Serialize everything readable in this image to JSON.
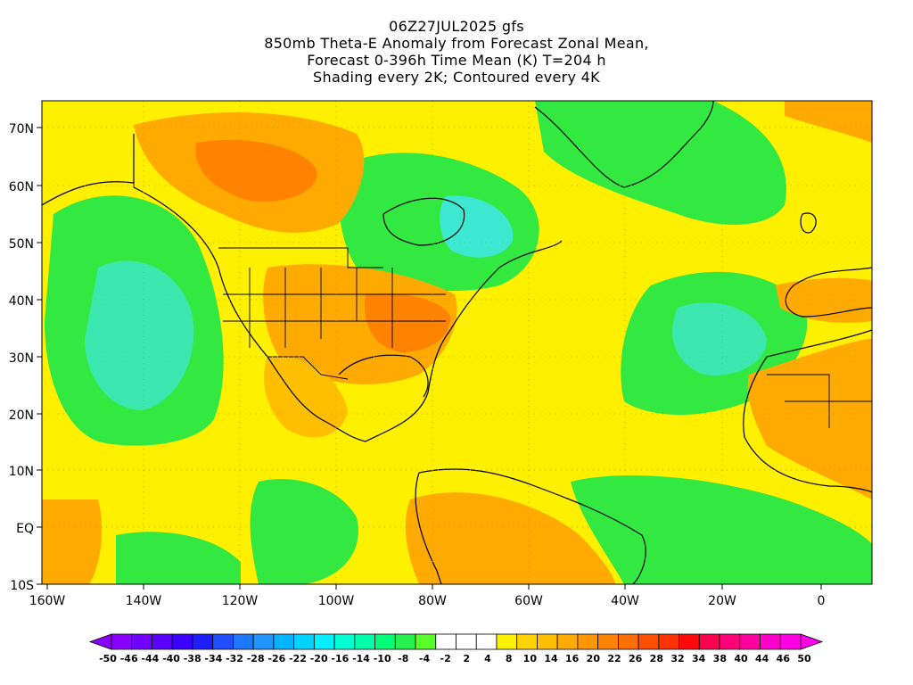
{
  "title": {
    "line1": "06Z27JUL2025 gfs",
    "line2": "850mb Theta-E Anomaly from Forecast Zonal Mean,",
    "line3": "Forecast 0-396h Time Mean (K) T=204 h",
    "line4": "Shading every 2K; Contoured every 4K"
  },
  "map": {
    "lon_labels": [
      "160W",
      "140W",
      "120W",
      "100W",
      "80W",
      "60W",
      "40W",
      "20W",
      "0"
    ],
    "lat_labels": [
      "70N",
      "60N",
      "50N",
      "40N",
      "30N",
      "20N",
      "10N",
      "EQ",
      "10S"
    ],
    "colors": {
      "positive_warm": "#f5a000",
      "negative_cool": "#33e840",
      "land_outline": "#000000"
    }
  },
  "colorbar": {
    "labels": [
      "-50",
      "-46",
      "-44",
      "-40",
      "-38",
      "-34",
      "-32",
      "-28",
      "-26",
      "-22",
      "-20",
      "-16",
      "-14",
      "-10",
      "-8",
      "-4",
      "-2",
      "2",
      "4",
      "8",
      "10",
      "14",
      "16",
      "20",
      "22",
      "26",
      "28",
      "32",
      "34",
      "38",
      "40",
      "44",
      "46",
      "50"
    ],
    "colors": [
      "#8a00ff",
      "#7200ff",
      "#5a00ff",
      "#3a00ff",
      "#1e1eff",
      "#1e50ff",
      "#1e78ff",
      "#1e96ff",
      "#00b4ff",
      "#00d2ff",
      "#00f0ff",
      "#00ffd2",
      "#00ffaa",
      "#00ff78",
      "#28f050",
      "#5aff28",
      "#ffffff",
      "#ffffff",
      "#ffffff",
      "#fff000",
      "#ffd200",
      "#ffbe00",
      "#ffaa00",
      "#ff9600",
      "#ff8200",
      "#ff6e00",
      "#ff5000",
      "#ff3200",
      "#ff0a0a",
      "#ff0050",
      "#ff0078",
      "#ff00a0",
      "#ff00c8",
      "#ff00e6"
    ]
  }
}
